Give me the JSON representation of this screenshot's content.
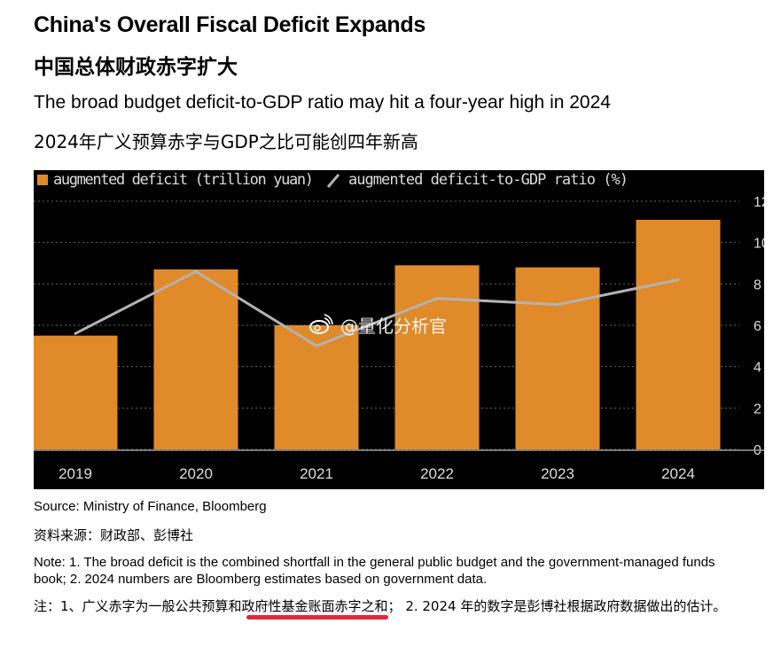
{
  "title_en": "China's Overall Fiscal Deficit Expands",
  "title_zh": "中国总体财政赤字扩大",
  "subtitle_en": "The broad budget deficit-to-GDP ratio may hit a four-year high in 2024",
  "subtitle_zh": "2024年广义预算赤字与GDP之比可能创四年新高",
  "watermark": "@量化分析官",
  "source_en": "Source: Ministry of Finance, Bloomberg",
  "source_zh": "资料来源：财政部、彭博社",
  "note_en": "Note: 1. The broad deficit is the combined shortfall in the general public budget and the government-managed funds book; 2. 2024 numbers are Bloomberg estimates based on government data.",
  "note_zh": "注：1、广义赤字为一般公共预算和政府性基金账面赤字之和； 2. 2024 年的数字是彭博社根据政府数据做出的估计。",
  "colors": {
    "bar": "#e18a2a",
    "line": "#b3b3b3",
    "background": "#000000",
    "grid": "#666666",
    "text": "#dddddd",
    "highlight": "#e8233a"
  },
  "chart_data": {
    "type": "bar",
    "categories": [
      "2019",
      "2020",
      "2021",
      "2022",
      "2023",
      "2024"
    ],
    "series": [
      {
        "name": "augmented deficit (trillion yuan)",
        "type": "bar",
        "values": [
          5.5,
          8.7,
          6.0,
          8.9,
          8.8,
          11.1
        ]
      },
      {
        "name": "augmented deficit-to-GDP ratio (%)",
        "type": "line",
        "values": [
          5.6,
          8.6,
          5.0,
          7.3,
          7.0,
          8.2
        ]
      }
    ],
    "yticks": [
      "0",
      "2",
      "4",
      "6",
      "8",
      "10",
      "12"
    ],
    "ylim": [
      0,
      12
    ],
    "legend_position": "top-left",
    "grid": "dashed horizontal"
  }
}
